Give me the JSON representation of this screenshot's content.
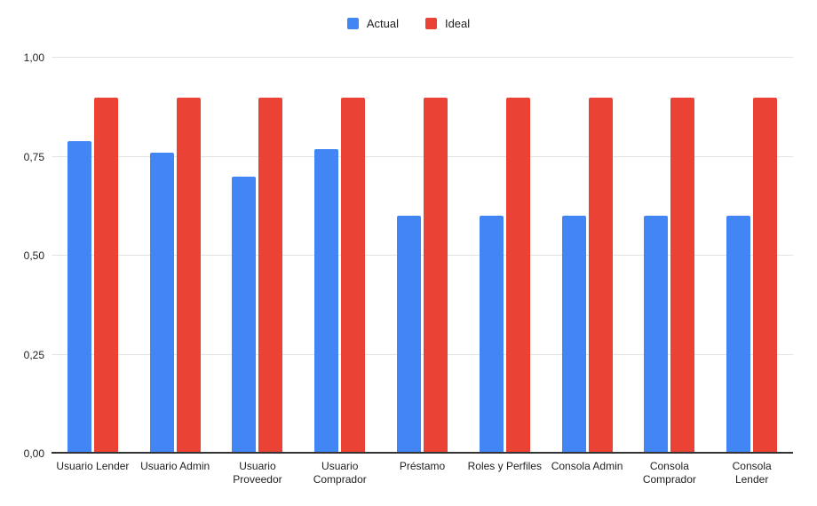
{
  "chart_data": {
    "type": "bar",
    "title": "",
    "xlabel": "",
    "ylabel": "",
    "grid": true,
    "legend_position": "top-center",
    "background_color": "#ffffff",
    "gridline_color": "#e3e3e3",
    "baseline_color": "#333333",
    "categories": [
      "Usuario Lender",
      "Usuario Admin",
      "Usuario Proveedor",
      "Usuario Comprador",
      "Préstamo",
      "Roles y Perfiles",
      "Consola Admin",
      "Consola Comprador",
      "Consola Lender"
    ],
    "category_display": [
      "Usuario Lender",
      "Usuario Admin",
      "Usuario\nProveedor",
      "Usuario\nComprador",
      "Préstamo",
      "Roles y Perfiles",
      "Consola Admin",
      "Consola\nComprador",
      "Consola\nLender"
    ],
    "series": [
      {
        "name": "Actual",
        "color": "#4285F4",
        "values": [
          0.79,
          0.76,
          0.7,
          0.77,
          0.6,
          0.6,
          0.6,
          0.6,
          0.6
        ]
      },
      {
        "name": "Ideal",
        "color": "#EA4335",
        "values": [
          0.9,
          0.9,
          0.9,
          0.9,
          0.9,
          0.9,
          0.9,
          0.9,
          0.9
        ]
      }
    ],
    "ylim": [
      0,
      1
    ],
    "ytick_values": [
      0,
      0.25,
      0.5,
      0.75,
      1.0
    ],
    "ytick_labels": [
      "0,00",
      "0,25",
      "0,50",
      "0,75",
      "1,00"
    ]
  }
}
